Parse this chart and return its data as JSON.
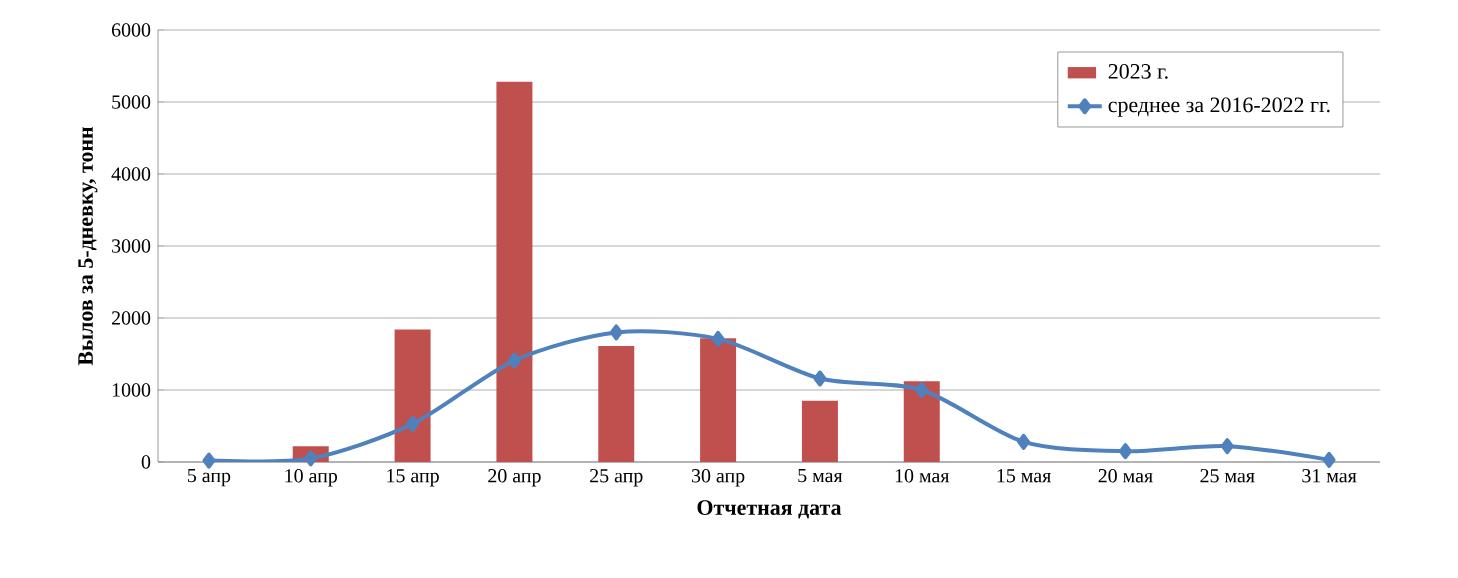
{
  "chart_data": {
    "type": "bar",
    "xlabel": "Отчетная дата",
    "ylabel": "Вылов за 5-дневку, тонн",
    "categories": [
      "5 апр",
      "10 апр",
      "15 апр",
      "20 апр",
      "25 апр",
      "30 апр",
      "5 мая",
      "10 мая",
      "15 мая",
      "20 мая",
      "25 мая",
      "31 мая"
    ],
    "series": [
      {
        "name": "2023 г.",
        "color": "#c0504d",
        "values": [
          null,
          220,
          1840,
          5280,
          1610,
          1720,
          850,
          1120,
          null,
          null,
          null,
          null
        ]
      },
      {
        "name": "среднее за 2016-2022 гг.",
        "type": "line",
        "color": "#4f81bd",
        "marker": "diamond",
        "values": [
          20,
          50,
          530,
          1410,
          1800,
          1710,
          1160,
          1000,
          280,
          150,
          220,
          30
        ]
      }
    ],
    "ylim": [
      0,
      6000
    ],
    "yticks": [
      0,
      1000,
      2000,
      3000,
      4000,
      5000,
      6000
    ],
    "grid": "y",
    "legend": "top right"
  }
}
